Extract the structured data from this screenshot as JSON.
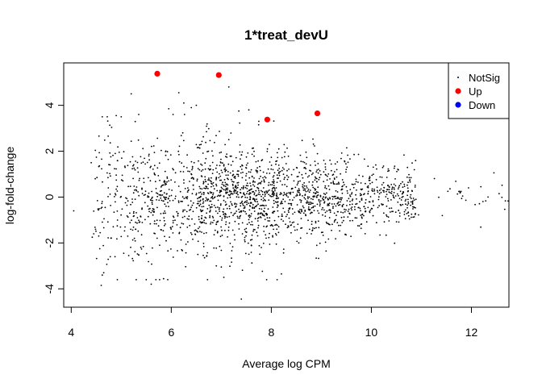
{
  "chart_data": {
    "type": "scatter",
    "title": "1*treat_devU",
    "xlabel": "Average log CPM",
    "ylabel": "log-fold-change",
    "xlim": [
      3.85,
      12.75
    ],
    "ylim": [
      -4.8,
      5.85
    ],
    "xticks": [
      4,
      6,
      8,
      10,
      12
    ],
    "yticks": [
      -4,
      -2,
      0,
      2,
      4
    ],
    "grid": false,
    "legend_position": "top-right",
    "series": [
      {
        "name": "NotSig",
        "color": "#000000",
        "marker": "small-dot",
        "description": "roughly 2000 non-significant genes: dense cloud centered on log-fold-change 0, spread about +/-2 at low average log CPM (4.5-7) narrowing toward +/-0.3 at high average log CPM (10-12.5)",
        "values": [
          [
            4.05,
            -0.6
          ],
          [
            4.4,
            1.5
          ],
          [
            4.45,
            -1.6
          ],
          [
            4.48,
            0.8
          ],
          [
            4.55,
            -1.7
          ],
          [
            4.6,
            -3.85
          ],
          [
            4.62,
            3.5
          ],
          [
            4.72,
            3.5
          ],
          [
            4.9,
            3.55
          ],
          [
            5.0,
            3.5
          ],
          [
            5.2,
            4.5
          ],
          [
            5.35,
            3.6
          ],
          [
            5.5,
            -3.6
          ],
          [
            5.6,
            -3.8
          ],
          [
            5.05,
            -2.45
          ],
          [
            5.15,
            -2.55
          ],
          [
            4.78,
            -2.6
          ],
          [
            4.65,
            -3.3
          ],
          [
            4.62,
            -3.4
          ],
          [
            5.3,
            -3.6
          ],
          [
            6.25,
            4.1
          ],
          [
            6.4,
            3.9
          ],
          [
            7.15,
            4.8
          ],
          [
            7.05,
            -3.5
          ],
          [
            7.0,
            -3.05
          ],
          [
            6.9,
            -3.0
          ],
          [
            7.4,
            -4.45
          ],
          [
            7.55,
            3.8
          ],
          [
            7.35,
            3.75
          ],
          [
            6.5,
            4.0
          ],
          [
            8.15,
            2.1
          ],
          [
            7.6,
            -2.1
          ],
          [
            7.8,
            -2.2
          ],
          [
            8.1,
            -2.05
          ],
          [
            8.55,
            -2.0
          ],
          [
            9.05,
            1.6
          ],
          [
            9.2,
            1.15
          ],
          [
            7.75,
            3.3
          ],
          [
            6.15,
            4.55
          ],
          [
            5.95,
            3.85
          ],
          [
            4.42,
            -1.75
          ],
          [
            4.88,
            1.9
          ]
        ]
      },
      {
        "name": "Up",
        "color": "#ff0000",
        "marker": "dot",
        "values": [
          [
            5.72,
            5.38
          ],
          [
            6.95,
            5.32
          ],
          [
            7.92,
            3.38
          ],
          [
            8.92,
            3.65
          ]
        ]
      },
      {
        "name": "Down",
        "color": "#0000ff",
        "marker": "dot",
        "values": []
      }
    ]
  }
}
